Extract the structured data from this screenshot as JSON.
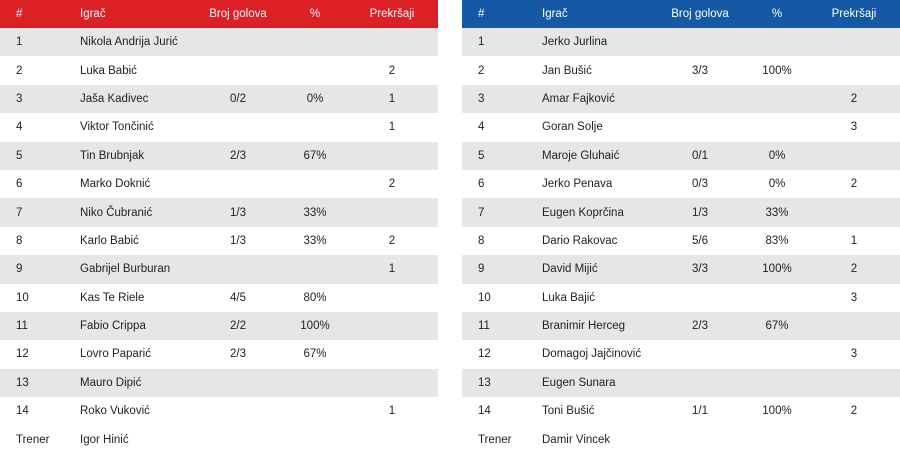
{
  "colors": {
    "home_header": "#dd1f26",
    "away_header": "#1559a6",
    "stripe": "#e6e6e6"
  },
  "columns": {
    "num": "#",
    "player": "Igrač",
    "goals": "Broj golova",
    "pct": "%",
    "fouls": "Prekršaji"
  },
  "home": {
    "players": [
      {
        "num": "1",
        "name": "Nikola Andrija Jurić",
        "goals": "",
        "pct": "",
        "fouls": ""
      },
      {
        "num": "2",
        "name": "Luka Babić",
        "goals": "",
        "pct": "",
        "fouls": "2"
      },
      {
        "num": "3",
        "name": "Jaša Kadivec",
        "goals": "0/2",
        "pct": "0%",
        "fouls": "1"
      },
      {
        "num": "4",
        "name": "Viktor Tončinić",
        "goals": "",
        "pct": "",
        "fouls": "1"
      },
      {
        "num": "5",
        "name": "Tin Brubnjak",
        "goals": "2/3",
        "pct": "67%",
        "fouls": ""
      },
      {
        "num": "6",
        "name": "Marko Doknić",
        "goals": "",
        "pct": "",
        "fouls": "2"
      },
      {
        "num": "7",
        "name": "Niko Čubranić",
        "goals": "1/3",
        "pct": "33%",
        "fouls": ""
      },
      {
        "num": "8",
        "name": "Karlo Babić",
        "goals": "1/3",
        "pct": "33%",
        "fouls": "2"
      },
      {
        "num": "9",
        "name": "Gabrijel Burburan",
        "goals": "",
        "pct": "",
        "fouls": "1"
      },
      {
        "num": "10",
        "name": "Kas Te Riele",
        "goals": "4/5",
        "pct": "80%",
        "fouls": ""
      },
      {
        "num": "11",
        "name": "Fabio Crippa",
        "goals": "2/2",
        "pct": "100%",
        "fouls": ""
      },
      {
        "num": "12",
        "name": "Lovro Paparić",
        "goals": "2/3",
        "pct": "67%",
        "fouls": ""
      },
      {
        "num": "13",
        "name": "Mauro Dipić",
        "goals": "",
        "pct": "",
        "fouls": ""
      },
      {
        "num": "14",
        "name": "Roko Vuković",
        "goals": "",
        "pct": "",
        "fouls": "1"
      }
    ],
    "coach_label": "Trener",
    "coach_name": "Igor Hinić"
  },
  "away": {
    "players": [
      {
        "num": "1",
        "name": "Jerko Jurlina",
        "goals": "",
        "pct": "",
        "fouls": ""
      },
      {
        "num": "2",
        "name": "Jan Bušić",
        "goals": "3/3",
        "pct": "100%",
        "fouls": ""
      },
      {
        "num": "3",
        "name": "Amar Fajković",
        "goals": "",
        "pct": "",
        "fouls": "2"
      },
      {
        "num": "4",
        "name": "Goran Solje",
        "goals": "",
        "pct": "",
        "fouls": "3"
      },
      {
        "num": "5",
        "name": "Maroje Gluhaić",
        "goals": "0/1",
        "pct": "0%",
        "fouls": ""
      },
      {
        "num": "6",
        "name": "Jerko Penava",
        "goals": "0/3",
        "pct": "0%",
        "fouls": "2"
      },
      {
        "num": "7",
        "name": "Eugen Koprčina",
        "goals": "1/3",
        "pct": "33%",
        "fouls": ""
      },
      {
        "num": "8",
        "name": "Dario Rakovac",
        "goals": "5/6",
        "pct": "83%",
        "fouls": "1"
      },
      {
        "num": "9",
        "name": "David Mijić",
        "goals": "3/3",
        "pct": "100%",
        "fouls": "2"
      },
      {
        "num": "10",
        "name": "Luka Bajić",
        "goals": "",
        "pct": "",
        "fouls": "3"
      },
      {
        "num": "11",
        "name": "Branimir Herceg",
        "goals": "2/3",
        "pct": "67%",
        "fouls": ""
      },
      {
        "num": "12",
        "name": "Domagoj Jajčinović",
        "goals": "",
        "pct": "",
        "fouls": "3"
      },
      {
        "num": "13",
        "name": "Eugen Sunara",
        "goals": "",
        "pct": "",
        "fouls": ""
      },
      {
        "num": "14",
        "name": "Toni Bušić",
        "goals": "1/1",
        "pct": "100%",
        "fouls": "2"
      }
    ],
    "coach_label": "Trener",
    "coach_name": "Damir Vincek"
  }
}
